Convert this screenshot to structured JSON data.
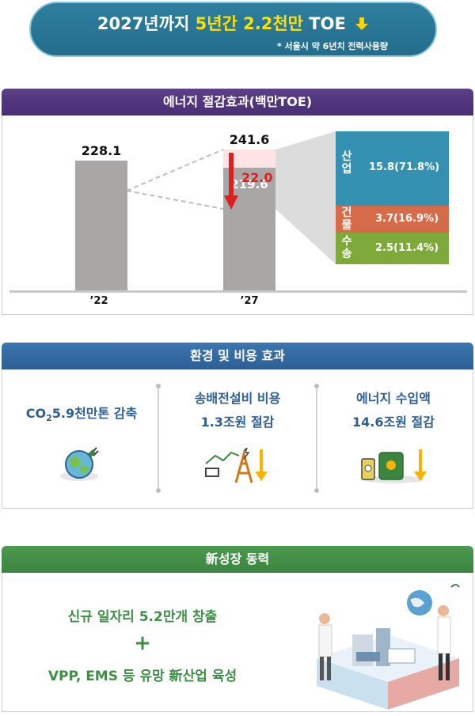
{
  "banner": {
    "title_prefix": "2027년까지 ",
    "title_highlight": "5년간 2.2천만",
    "title_suffix": " TOE",
    "note": "* 서울시 약 6년치 전력사용량"
  },
  "section1": {
    "title": "에너지 절감효과(백만TOE)"
  },
  "chart_data": {
    "type": "bar",
    "categories": [
      "’22",
      "’27"
    ],
    "values": [
      228.1,
      241.6
    ],
    "reduced_value": 219.6,
    "reduction": 22.0,
    "ylim": [
      0,
      250
    ],
    "breakdown": [
      {
        "name": "산업",
        "value": "15.8(71.8%)",
        "color": "#3591b1"
      },
      {
        "name": "건물",
        "value": "3.7(16.9%)",
        "color": "#d66b4a"
      },
      {
        "name": "수송",
        "value": "2.5(11.4%)",
        "color": "#7daa3a"
      }
    ],
    "labels": {
      "bar1_value": "228.1",
      "bar2_value": "241.6",
      "bar2_reduced": "219.6",
      "reduction_label": "22.0",
      "x1": "’22",
      "x2": "’27"
    }
  },
  "section2": {
    "title": "환경 및 비용 효과",
    "col1": {
      "co": "CO",
      "sub": "2",
      "rest": "5.9천만톤 감축"
    },
    "col2": {
      "line1": "송배전설비 비용",
      "line2": "1.3조원 절감"
    },
    "col3": {
      "line1": "에너지 수입액",
      "line2": "14.6조원 절감"
    }
  },
  "section3": {
    "title": "新성장 동력",
    "line1": "신규 일자리 5.2만개 창출",
    "plus": "+",
    "line2": "VPP, EMS 등 유망 新산업 육성"
  },
  "icons": [
    "down-arrow-icon",
    "earth-plug-icon",
    "power-tower-icon",
    "oil-barrel-icon"
  ]
}
